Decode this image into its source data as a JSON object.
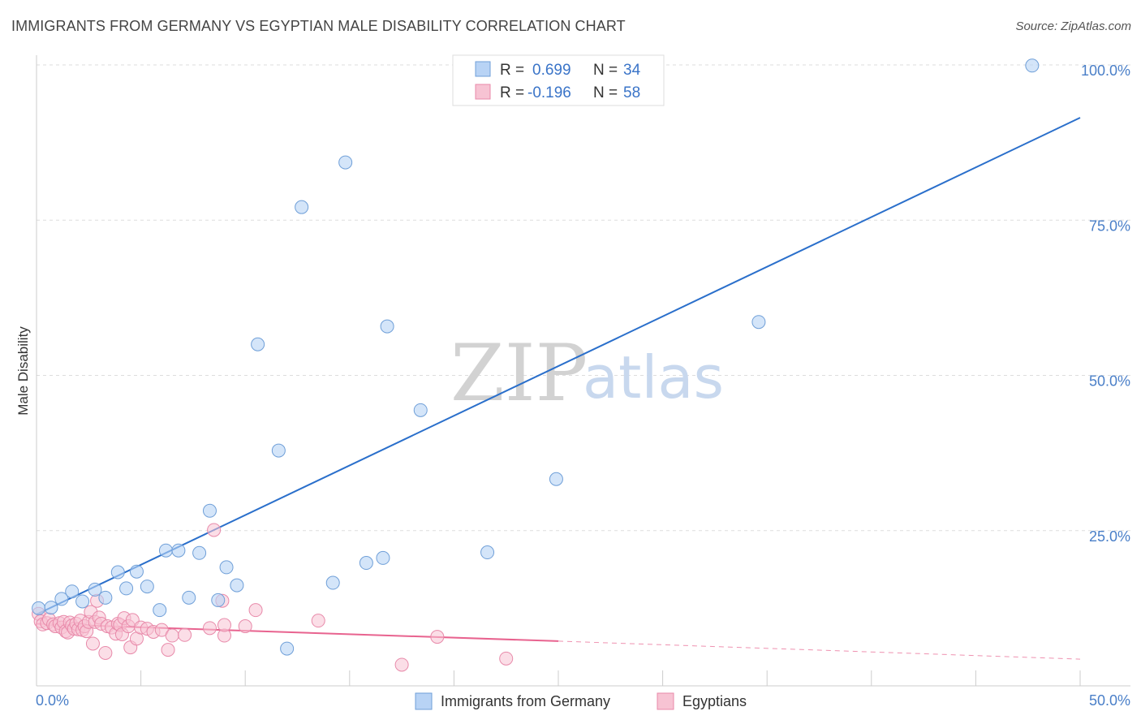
{
  "header": {
    "title": "IMMIGRANTS FROM GERMANY VS EGYPTIAN MALE DISABILITY CORRELATION CHART",
    "source": "Source: ZipAtlas.com"
  },
  "watermark": {
    "part1": "ZIP",
    "part2": "atlas"
  },
  "legend": {
    "rows": [
      {
        "r_label": "R =",
        "r_value": "0.699",
        "n_label": "N =",
        "n_value": "34"
      },
      {
        "r_label": "R =",
        "r_value": "-0.196",
        "n_label": "N =",
        "n_value": "58"
      }
    ]
  },
  "bottom_legend": {
    "items": [
      {
        "label": "Immigrants from Germany"
      },
      {
        "label": "Egyptians"
      }
    ]
  },
  "chart_data": {
    "type": "scatter",
    "title": "IMMIGRANTS FROM GERMANY VS EGYPTIAN MALE DISABILITY CORRELATION CHART",
    "xlabel": "",
    "ylabel": "Male Disability",
    "xlim": [
      0,
      50
    ],
    "ylim": [
      0,
      100
    ],
    "x_tick_labels": [
      "0.0%",
      "50.0%"
    ],
    "y_ticks": [
      {
        "value": 25,
        "label": "25.0%"
      },
      {
        "value": 50,
        "label": "50.0%"
      },
      {
        "value": 75,
        "label": "75.0%"
      },
      {
        "value": 100,
        "label": "100.0%"
      }
    ],
    "grid": true,
    "colors": {
      "germany_fill": "#b8d3f5",
      "germany_stroke": "#6f9fd8",
      "germany_line": "#2a6fcb",
      "egypt_fill": "#f7c3d3",
      "egypt_stroke": "#e88aaa",
      "egypt_line": "#e8638f",
      "grid": "#dddddd",
      "axis": "#cccccc"
    },
    "series": [
      {
        "name": "Immigrants from Germany",
        "r": 0.699,
        "n": 34,
        "trendline": {
          "x0": 0,
          "y0": 11.5,
          "x1": 50,
          "y1": 91.5
        },
        "points": [
          [
            0.1,
            12.5
          ],
          [
            0.7,
            12.6
          ],
          [
            1.2,
            14.0
          ],
          [
            1.7,
            15.2
          ],
          [
            2.2,
            13.6
          ],
          [
            2.8,
            15.5
          ],
          [
            3.3,
            14.2
          ],
          [
            3.9,
            18.3
          ],
          [
            4.3,
            15.7
          ],
          [
            4.8,
            18.4
          ],
          [
            5.3,
            16.0
          ],
          [
            5.9,
            12.2
          ],
          [
            6.2,
            21.8
          ],
          [
            6.8,
            21.8
          ],
          [
            7.3,
            14.2
          ],
          [
            7.8,
            21.4
          ],
          [
            8.3,
            28.2
          ],
          [
            8.7,
            13.8
          ],
          [
            9.1,
            19.1
          ],
          [
            9.6,
            16.2
          ],
          [
            10.6,
            55.0
          ],
          [
            11.6,
            37.9
          ],
          [
            12.0,
            6.0
          ],
          [
            12.7,
            77.1
          ],
          [
            14.2,
            16.6
          ],
          [
            14.8,
            84.3
          ],
          [
            15.8,
            19.8
          ],
          [
            16.6,
            20.6
          ],
          [
            16.8,
            57.9
          ],
          [
            18.4,
            44.4
          ],
          [
            21.6,
            21.5
          ],
          [
            24.9,
            33.3
          ],
          [
            34.6,
            58.6
          ],
          [
            47.7,
            99.9
          ]
        ]
      },
      {
        "name": "Egyptians",
        "r": -0.196,
        "n": 58,
        "trendline": {
          "x0": 0,
          "y0": 10.0,
          "x1": 25,
          "y1": 7.2,
          "dash_to_x": 50,
          "dash_to_y": 4.3
        },
        "points": [
          [
            0.1,
            11.6
          ],
          [
            0.2,
            10.4
          ],
          [
            0.3,
            9.9
          ],
          [
            0.5,
            10.1
          ],
          [
            0.6,
            10.7
          ],
          [
            0.8,
            9.9
          ],
          [
            0.9,
            9.6
          ],
          [
            1.1,
            10.1
          ],
          [
            1.2,
            9.4
          ],
          [
            1.3,
            10.3
          ],
          [
            1.4,
            8.8
          ],
          [
            1.5,
            8.6
          ],
          [
            1.6,
            10.2
          ],
          [
            1.7,
            9.7
          ],
          [
            1.8,
            9.2
          ],
          [
            1.9,
            10.0
          ],
          [
            2.0,
            9.1
          ],
          [
            2.1,
            10.5
          ],
          [
            2.2,
            9.0
          ],
          [
            2.3,
            9.6
          ],
          [
            2.4,
            8.8
          ],
          [
            2.5,
            10.3
          ],
          [
            2.6,
            11.9
          ],
          [
            2.7,
            6.8
          ],
          [
            2.8,
            10.3
          ],
          [
            2.9,
            13.7
          ],
          [
            3.0,
            11.0
          ],
          [
            3.1,
            10.0
          ],
          [
            3.3,
            5.3
          ],
          [
            3.4,
            9.6
          ],
          [
            3.6,
            9.4
          ],
          [
            3.8,
            8.4
          ],
          [
            3.9,
            10.0
          ],
          [
            4.0,
            9.8
          ],
          [
            4.1,
            8.3
          ],
          [
            4.2,
            10.9
          ],
          [
            4.4,
            9.6
          ],
          [
            4.5,
            6.2
          ],
          [
            4.6,
            10.6
          ],
          [
            4.8,
            7.6
          ],
          [
            5.0,
            9.4
          ],
          [
            5.3,
            9.2
          ],
          [
            5.6,
            8.7
          ],
          [
            6.0,
            9.0
          ],
          [
            6.3,
            5.8
          ],
          [
            6.5,
            8.1
          ],
          [
            7.1,
            8.2
          ],
          [
            8.3,
            9.3
          ],
          [
            8.5,
            25.1
          ],
          [
            8.9,
            13.7
          ],
          [
            9.0,
            8.1
          ],
          [
            9.0,
            9.8
          ],
          [
            10.0,
            9.6
          ],
          [
            10.5,
            12.2
          ],
          [
            13.5,
            10.5
          ],
          [
            17.5,
            3.4
          ],
          [
            19.2,
            7.9
          ],
          [
            22.5,
            4.4
          ]
        ]
      }
    ]
  }
}
